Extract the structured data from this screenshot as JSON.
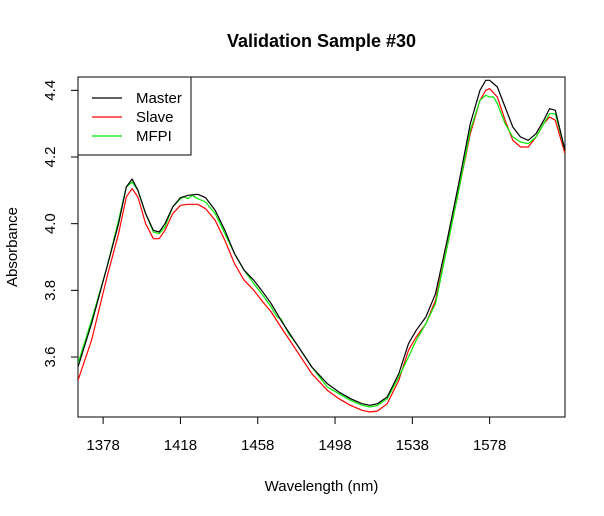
{
  "chart_data": {
    "type": "line",
    "title": "Validation Sample #30",
    "xlabel": "Wavelength (nm)",
    "ylabel": "Absorbance",
    "xlim": [
      1365,
      1617
    ],
    "ylim": [
      3.42,
      4.44
    ],
    "xticks": [
      1378,
      1418,
      1458,
      1498,
      1538,
      1578
    ],
    "yticks": [
      3.6,
      3.8,
      4.0,
      4.2,
      4.4
    ],
    "grid": false,
    "legend_position": "top-left",
    "series": [
      {
        "name": "Master",
        "color": "#000000",
        "points": [
          [
            1365,
            3.57
          ],
          [
            1372,
            3.7
          ],
          [
            1380,
            3.87
          ],
          [
            1386,
            4.0
          ],
          [
            1390,
            4.11
          ],
          [
            1393,
            4.134
          ],
          [
            1396,
            4.1
          ],
          [
            1400,
            4.03
          ],
          [
            1404,
            3.98
          ],
          [
            1407,
            3.975
          ],
          [
            1410,
            4.0
          ],
          [
            1414,
            4.05
          ],
          [
            1418,
            4.078
          ],
          [
            1422,
            4.085
          ],
          [
            1427,
            4.088
          ],
          [
            1431,
            4.078
          ],
          [
            1436,
            4.04
          ],
          [
            1441,
            3.98
          ],
          [
            1446,
            3.91
          ],
          [
            1451,
            3.86
          ],
          [
            1456,
            3.83
          ],
          [
            1460,
            3.8
          ],
          [
            1465,
            3.76
          ],
          [
            1470,
            3.71
          ],
          [
            1478,
            3.64
          ],
          [
            1486,
            3.57
          ],
          [
            1494,
            3.52
          ],
          [
            1500,
            3.495
          ],
          [
            1506,
            3.475
          ],
          [
            1512,
            3.46
          ],
          [
            1516,
            3.455
          ],
          [
            1520,
            3.46
          ],
          [
            1525,
            3.48
          ],
          [
            1531,
            3.55
          ],
          [
            1536,
            3.64
          ],
          [
            1540,
            3.68
          ],
          [
            1545,
            3.72
          ],
          [
            1550,
            3.79
          ],
          [
            1556,
            3.95
          ],
          [
            1562,
            4.12
          ],
          [
            1568,
            4.3
          ],
          [
            1573,
            4.4
          ],
          [
            1576,
            4.43
          ],
          [
            1578,
            4.43
          ],
          [
            1582,
            4.41
          ],
          [
            1586,
            4.35
          ],
          [
            1590,
            4.29
          ],
          [
            1594,
            4.26
          ],
          [
            1598,
            4.25
          ],
          [
            1602,
            4.27
          ],
          [
            1606,
            4.31
          ],
          [
            1609,
            4.345
          ],
          [
            1612,
            4.34
          ],
          [
            1617,
            4.22
          ]
        ]
      },
      {
        "name": "Slave",
        "color": "#ff0000",
        "points": [
          [
            1365,
            3.53
          ],
          [
            1372,
            3.65
          ],
          [
            1380,
            3.84
          ],
          [
            1386,
            3.97
          ],
          [
            1390,
            4.08
          ],
          [
            1393,
            4.105
          ],
          [
            1396,
            4.08
          ],
          [
            1400,
            4.0
          ],
          [
            1404,
            3.955
          ],
          [
            1407,
            3.955
          ],
          [
            1410,
            3.98
          ],
          [
            1414,
            4.03
          ],
          [
            1418,
            4.055
          ],
          [
            1422,
            4.058
          ],
          [
            1427,
            4.058
          ],
          [
            1431,
            4.045
          ],
          [
            1436,
            4.01
          ],
          [
            1441,
            3.95
          ],
          [
            1446,
            3.88
          ],
          [
            1451,
            3.83
          ],
          [
            1456,
            3.8
          ],
          [
            1460,
            3.77
          ],
          [
            1465,
            3.735
          ],
          [
            1470,
            3.69
          ],
          [
            1478,
            3.62
          ],
          [
            1486,
            3.55
          ],
          [
            1494,
            3.5
          ],
          [
            1500,
            3.475
          ],
          [
            1506,
            3.455
          ],
          [
            1512,
            3.44
          ],
          [
            1516,
            3.435
          ],
          [
            1520,
            3.438
          ],
          [
            1525,
            3.46
          ],
          [
            1531,
            3.53
          ],
          [
            1536,
            3.62
          ],
          [
            1540,
            3.66
          ],
          [
            1545,
            3.7
          ],
          [
            1550,
            3.77
          ],
          [
            1556,
            3.93
          ],
          [
            1562,
            4.1
          ],
          [
            1568,
            4.27
          ],
          [
            1573,
            4.37
          ],
          [
            1576,
            4.4
          ],
          [
            1578,
            4.405
          ],
          [
            1582,
            4.38
          ],
          [
            1586,
            4.31
          ],
          [
            1590,
            4.25
          ],
          [
            1594,
            4.23
          ],
          [
            1598,
            4.23
          ],
          [
            1602,
            4.26
          ],
          [
            1606,
            4.3
          ],
          [
            1609,
            4.32
          ],
          [
            1612,
            4.31
          ],
          [
            1617,
            4.21
          ]
        ]
      },
      {
        "name": "MFPI",
        "color": "#00ee00",
        "points": [
          [
            1365,
            3.58
          ],
          [
            1372,
            3.71
          ],
          [
            1380,
            3.87
          ],
          [
            1386,
            4.01
          ],
          [
            1390,
            4.11
          ],
          [
            1393,
            4.125
          ],
          [
            1396,
            4.1
          ],
          [
            1400,
            4.03
          ],
          [
            1404,
            3.975
          ],
          [
            1407,
            3.97
          ],
          [
            1410,
            3.99
          ],
          [
            1414,
            4.05
          ],
          [
            1418,
            4.075
          ],
          [
            1420,
            4.08
          ],
          [
            1422,
            4.075
          ],
          [
            1424,
            4.085
          ],
          [
            1427,
            4.075
          ],
          [
            1431,
            4.065
          ],
          [
            1436,
            4.03
          ],
          [
            1441,
            3.97
          ],
          [
            1446,
            3.91
          ],
          [
            1451,
            3.86
          ],
          [
            1456,
            3.82
          ],
          [
            1460,
            3.79
          ],
          [
            1465,
            3.75
          ],
          [
            1468,
            3.72
          ],
          [
            1470,
            3.715
          ],
          [
            1474,
            3.67
          ],
          [
            1478,
            3.64
          ],
          [
            1486,
            3.57
          ],
          [
            1494,
            3.51
          ],
          [
            1500,
            3.49
          ],
          [
            1506,
            3.47
          ],
          [
            1512,
            3.455
          ],
          [
            1516,
            3.45
          ],
          [
            1520,
            3.455
          ],
          [
            1525,
            3.475
          ],
          [
            1531,
            3.54
          ],
          [
            1536,
            3.6
          ],
          [
            1540,
            3.65
          ],
          [
            1545,
            3.7
          ],
          [
            1550,
            3.76
          ],
          [
            1556,
            3.93
          ],
          [
            1562,
            4.1
          ],
          [
            1568,
            4.28
          ],
          [
            1573,
            4.37
          ],
          [
            1576,
            4.385
          ],
          [
            1578,
            4.38
          ],
          [
            1580,
            4.38
          ],
          [
            1582,
            4.36
          ],
          [
            1586,
            4.3
          ],
          [
            1590,
            4.26
          ],
          [
            1594,
            4.245
          ],
          [
            1598,
            4.24
          ],
          [
            1602,
            4.26
          ],
          [
            1606,
            4.3
          ],
          [
            1609,
            4.33
          ],
          [
            1612,
            4.33
          ],
          [
            1617,
            4.22
          ]
        ]
      }
    ]
  }
}
